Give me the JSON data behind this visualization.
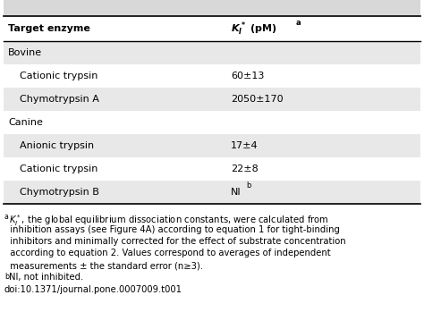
{
  "title_col1": "Target enzyme",
  "rows": [
    {
      "label": "Bovine",
      "value": "",
      "indent": false,
      "category": true,
      "shaded": true
    },
    {
      "label": "Cationic trypsin",
      "value": "60±13",
      "indent": true,
      "category": false,
      "shaded": false
    },
    {
      "label": "Chymotrypsin A",
      "value": "2050±170",
      "indent": true,
      "category": false,
      "shaded": true
    },
    {
      "label": "Canine",
      "value": "",
      "indent": false,
      "category": true,
      "shaded": false
    },
    {
      "label": "Anionic trypsin",
      "value": "17±4",
      "indent": true,
      "category": false,
      "shaded": true
    },
    {
      "label": "Cationic trypsin",
      "value": "22±8",
      "indent": true,
      "category": false,
      "shaded": false
    },
    {
      "label": "Chymotrypsin B",
      "value": "NI_b",
      "indent": true,
      "category": false,
      "shaded": true
    }
  ],
  "footnote_lines": [
    "aKi*, the global equilibrium dissociation constants, were calculated from",
    "  inhibition assays (see Figure 4A) according to equation 1 for tight-binding",
    "  inhibitors and minimally corrected for the effect of substrate concentration",
    "  according to equation 2. Values correspond to averages of independent",
    "  measurements ± the standard error (n≥3).",
    "bNI, not inhibited.",
    "doi:10.1371/journal.pone.0007009.t001"
  ],
  "shaded_color": "#e8e8e8",
  "white_color": "#ffffff",
  "top_margin_color": "#d8d8d8",
  "border_color": "#000000",
  "font_size": 8.0,
  "footnote_font_size": 7.2,
  "col_split": 0.535
}
